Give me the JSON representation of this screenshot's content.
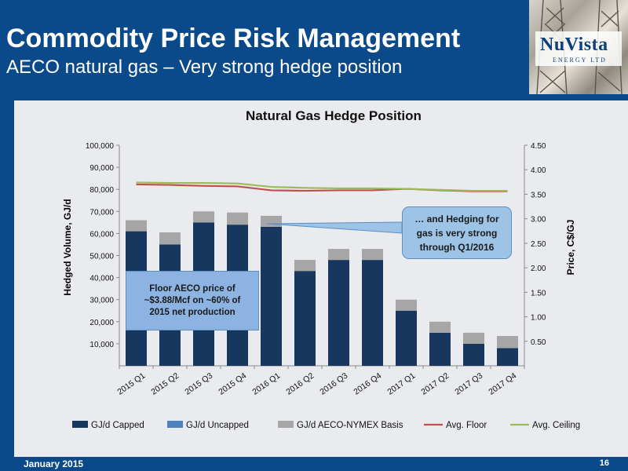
{
  "header": {
    "title": "Commodity Price Risk Management",
    "subtitle": "AECO natural gas – Very strong hedge position"
  },
  "logo": {
    "name": "NuVista",
    "sub": "ENERGY LTD"
  },
  "colors": {
    "header_blue": "#0b4a8a",
    "capped": "#17375e",
    "uncapped": "#4f81bd",
    "basis": "#a6a6a6",
    "floor": "#c0504d",
    "ceiling": "#9bbb59"
  },
  "annotations": {
    "callout": "… and Hedging for\ngas is very strong\nthrough Q1/2016",
    "floor_box": "Floor AECO price of\n~$3.88/Mcf on  ~60% of\n2015 net production"
  },
  "footer": {
    "date": "January 2015",
    "page": "16"
  },
  "chart_data": {
    "type": "bar",
    "title": "Natural Gas Hedge Position",
    "ylabel": "Hedged Volume, GJ/d",
    "y2label": "Price, C$/GJ",
    "ylim": [
      0,
      100000
    ],
    "y2lim": [
      0,
      4.5
    ],
    "yticks": [
      "10,000",
      "20,000",
      "30,000",
      "40,000",
      "50,000",
      "60,000",
      "70,000",
      "80,000",
      "90,000",
      "100,000"
    ],
    "y2ticks": [
      "0.50",
      "1.00",
      "1.50",
      "2.00",
      "2.50",
      "3.00",
      "3.50",
      "4.00",
      "4.50"
    ],
    "categories": [
      "2015 Q1",
      "2015 Q2",
      "2015 Q3",
      "2015 Q4",
      "2016 Q1",
      "2016 Q2",
      "2016 Q3",
      "2016 Q4",
      "2017 Q1",
      "2017 Q2",
      "2017 Q3",
      "2017 Q4"
    ],
    "series": [
      {
        "name": "GJ/d Capped",
        "kind": "bar",
        "axis": "left",
        "values": [
          61000,
          55000,
          65000,
          64000,
          63000,
          43000,
          48000,
          48000,
          25000,
          15000,
          10000,
          8000
        ]
      },
      {
        "name": "GJ/d Uncapped",
        "kind": "bar",
        "axis": "left",
        "values": [
          0,
          0,
          0,
          0,
          0,
          0,
          0,
          0,
          0,
          0,
          0,
          0
        ]
      },
      {
        "name": "GJ/d AECO-NYMEX Basis",
        "kind": "bar",
        "axis": "left",
        "values": [
          5000,
          5500,
          5000,
          5500,
          5000,
          5000,
          5000,
          5000,
          5000,
          5000,
          5000,
          5500
        ]
      },
      {
        "name": "Avg. Floor",
        "kind": "line",
        "axis": "right",
        "values": [
          3.7,
          3.69,
          3.67,
          3.66,
          3.58,
          3.57,
          3.58,
          3.58,
          3.61,
          3.58,
          3.56,
          3.56
        ]
      },
      {
        "name": "Avg. Ceiling",
        "kind": "line",
        "axis": "right",
        "values": [
          3.74,
          3.73,
          3.73,
          3.72,
          3.65,
          3.63,
          3.62,
          3.62,
          3.61,
          3.59,
          3.57,
          3.57
        ]
      }
    ],
    "legend": "bottom",
    "grid": false
  }
}
